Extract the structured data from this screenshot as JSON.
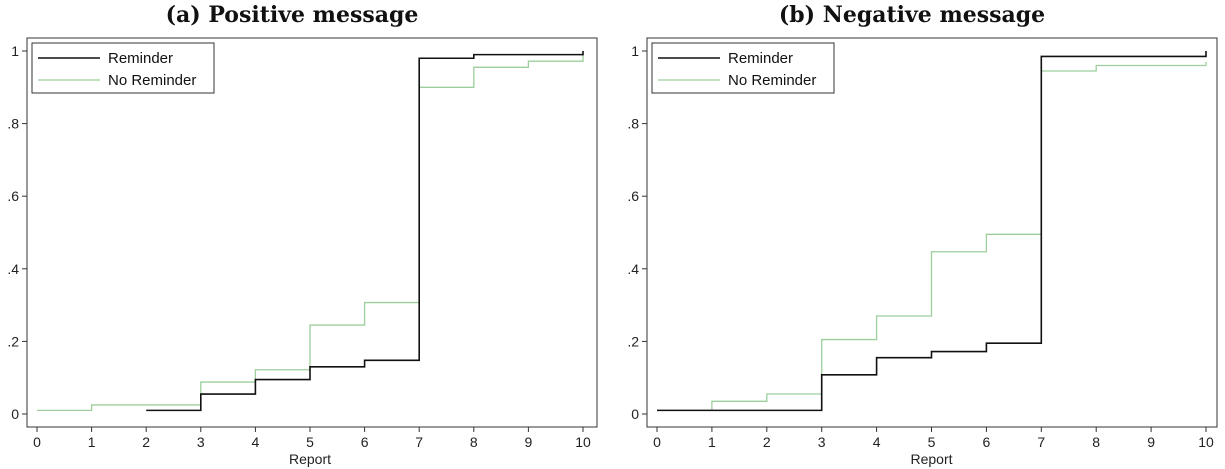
{
  "chart_data": [
    {
      "type": "line",
      "step": true,
      "title": "(a) Positive message",
      "xlabel": "Report",
      "ylabel": "",
      "xlim": [
        0,
        10
      ],
      "ylim": [
        0,
        1
      ],
      "xticks": [
        "0",
        "1",
        "2",
        "3",
        "4",
        "5",
        "6",
        "7",
        "8",
        "9",
        "10"
      ],
      "yticks": [
        "0",
        ".2",
        ".4",
        ".6",
        ".8",
        "1"
      ],
      "legend_position": "top-left",
      "series": [
        {
          "name": "Reminder",
          "color": "#111111",
          "x": [
            2,
            3,
            4,
            5,
            6,
            7,
            8,
            10
          ],
          "y": [
            0.01,
            0.055,
            0.095,
            0.13,
            0.148,
            0.98,
            0.99,
            1.0
          ]
        },
        {
          "name": "No Reminder",
          "color": "#9ccf9c",
          "x": [
            0,
            1,
            3,
            4,
            5,
            6,
            7,
            8,
            9,
            10
          ],
          "y": [
            0.01,
            0.025,
            0.088,
            0.122,
            0.245,
            0.307,
            0.9,
            0.955,
            0.972,
            0.99
          ]
        }
      ]
    },
    {
      "type": "line",
      "step": true,
      "title": "(b) Negative message",
      "xlabel": "Report",
      "ylabel": "",
      "xlim": [
        0,
        10
      ],
      "ylim": [
        0,
        1
      ],
      "xticks": [
        "0",
        "1",
        "2",
        "3",
        "4",
        "5",
        "6",
        "7",
        "8",
        "9",
        "10"
      ],
      "yticks": [
        "0",
        ".2",
        ".4",
        ".6",
        ".8",
        "1"
      ],
      "legend_position": "top-left",
      "series": [
        {
          "name": "Reminder",
          "color": "#111111",
          "x": [
            0,
            3,
            4,
            5,
            6,
            7,
            10
          ],
          "y": [
            0.01,
            0.108,
            0.155,
            0.172,
            0.195,
            0.985,
            1.0
          ]
        },
        {
          "name": "No Reminder",
          "color": "#9ccf9c",
          "x": [
            0,
            1,
            2,
            3,
            4,
            5,
            6,
            7,
            8,
            10
          ],
          "y": [
            0.01,
            0.035,
            0.055,
            0.205,
            0.27,
            0.447,
            0.495,
            0.945,
            0.96,
            0.97
          ]
        }
      ]
    }
  ]
}
